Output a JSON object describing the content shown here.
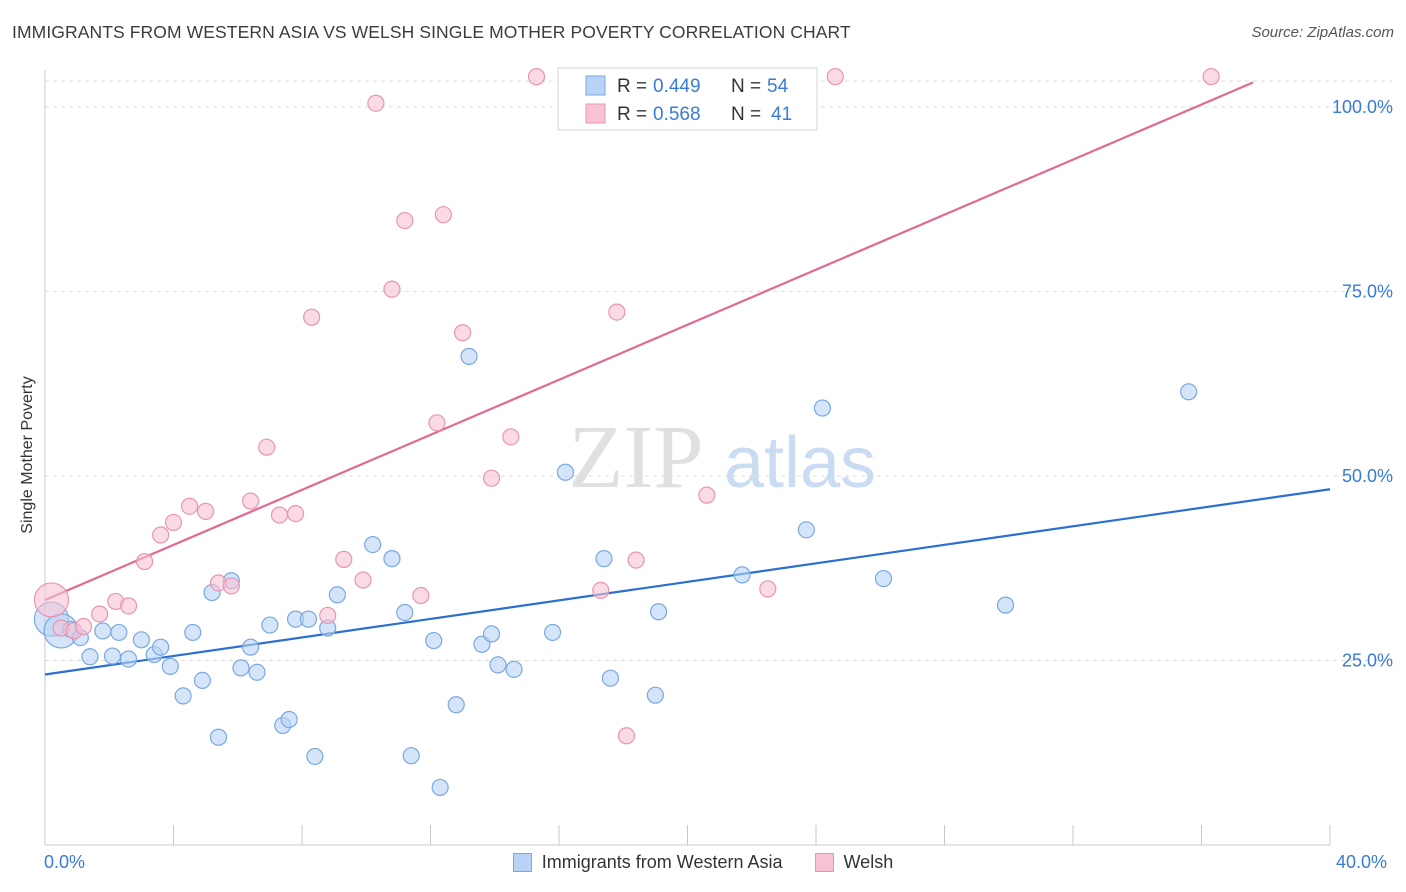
{
  "title": "IMMIGRANTS FROM WESTERN ASIA VS WELSH SINGLE MOTHER POVERTY CORRELATION CHART",
  "source": "Source: ZipAtlas.com",
  "watermark": {
    "zip": "ZIP",
    "atlas": "atlas"
  },
  "legend_stats": [
    {
      "r_label": "R = ",
      "r_value": "0.449",
      "n_label": "N = ",
      "n_value": "54"
    },
    {
      "r_label": "R = ",
      "r_value": "0.568",
      "n_label": "N = ",
      "n_value": "41"
    }
  ],
  "colors": {
    "blue_fill": "#b8d3f5",
    "blue_stroke": "#7aa8e0",
    "blue_line": "#2b6fcf",
    "pink_fill": "#f7c3d3",
    "pink_stroke": "#e995b0",
    "pink_line": "#e06a93",
    "tick_label": "#3a7bd5",
    "grid": "#dcdcdc"
  },
  "chart_data": {
    "type": "scatter",
    "title": "IMMIGRANTS FROM WESTERN ASIA VS WELSH SINGLE MOTHER POVERTY CORRELATION CHART",
    "xlabel": "",
    "ylabel": "Single Mother Poverty",
    "xlim": [
      0,
      40
    ],
    "ylim": [
      0,
      105
    ],
    "x_tick_labels": [
      "0.0%",
      "40.0%"
    ],
    "y_ticks": [
      25,
      50,
      75,
      100
    ],
    "y_tick_labels": [
      "25.0%",
      "50.0%",
      "75.0%",
      "100.0%"
    ],
    "grid": true,
    "legend_position": "top-center",
    "series": [
      {
        "name": "Immigrants from Western Asia",
        "r": 0.449,
        "n": 54,
        "trend": {
          "x": [
            0,
            40
          ],
          "y": [
            23.1,
            48.2
          ]
        },
        "points": [
          {
            "x": 0.2,
            "y": 30.6,
            "big": true
          },
          {
            "x": 0.5,
            "y": 29.0,
            "big": true
          },
          {
            "x": 0.8,
            "y": 29.2
          },
          {
            "x": 1.1,
            "y": 28.1
          },
          {
            "x": 1.4,
            "y": 25.5
          },
          {
            "x": 1.8,
            "y": 29.0
          },
          {
            "x": 2.1,
            "y": 25.6
          },
          {
            "x": 2.3,
            "y": 28.8
          },
          {
            "x": 2.6,
            "y": 25.2
          },
          {
            "x": 3.0,
            "y": 27.8
          },
          {
            "x": 3.4,
            "y": 25.8
          },
          {
            "x": 3.6,
            "y": 26.8
          },
          {
            "x": 3.9,
            "y": 24.2
          },
          {
            "x": 4.3,
            "y": 20.2
          },
          {
            "x": 4.6,
            "y": 28.8
          },
          {
            "x": 4.9,
            "y": 22.3
          },
          {
            "x": 5.2,
            "y": 34.2
          },
          {
            "x": 5.4,
            "y": 14.6
          },
          {
            "x": 5.8,
            "y": 35.8
          },
          {
            "x": 6.1,
            "y": 24.0
          },
          {
            "x": 6.4,
            "y": 26.8
          },
          {
            "x": 6.6,
            "y": 23.4
          },
          {
            "x": 7.0,
            "y": 29.8
          },
          {
            "x": 7.4,
            "y": 16.2
          },
          {
            "x": 7.6,
            "y": 17.0
          },
          {
            "x": 7.8,
            "y": 30.6
          },
          {
            "x": 8.2,
            "y": 30.6
          },
          {
            "x": 8.4,
            "y": 12.0
          },
          {
            "x": 8.8,
            "y": 29.4
          },
          {
            "x": 9.1,
            "y": 33.9
          },
          {
            "x": 10.2,
            "y": 40.7
          },
          {
            "x": 10.8,
            "y": 38.8
          },
          {
            "x": 11.2,
            "y": 31.5
          },
          {
            "x": 11.4,
            "y": 12.1
          },
          {
            "x": 12.1,
            "y": 27.7
          },
          {
            "x": 12.3,
            "y": 7.8
          },
          {
            "x": 12.8,
            "y": 19.0
          },
          {
            "x": 13.2,
            "y": 66.2
          },
          {
            "x": 13.6,
            "y": 27.2
          },
          {
            "x": 13.9,
            "y": 28.6
          },
          {
            "x": 14.1,
            "y": 24.4
          },
          {
            "x": 14.6,
            "y": 23.8
          },
          {
            "x": 15.8,
            "y": 28.8
          },
          {
            "x": 16.2,
            "y": 50.5
          },
          {
            "x": 17.4,
            "y": 38.8
          },
          {
            "x": 17.6,
            "y": 22.6
          },
          {
            "x": 19.0,
            "y": 20.3
          },
          {
            "x": 19.1,
            "y": 31.6
          },
          {
            "x": 21.7,
            "y": 36.6
          },
          {
            "x": 23.7,
            "y": 42.7
          },
          {
            "x": 24.2,
            "y": 59.2
          },
          {
            "x": 26.1,
            "y": 36.1
          },
          {
            "x": 29.9,
            "y": 32.5
          },
          {
            "x": 35.6,
            "y": 61.4
          }
        ]
      },
      {
        "name": "Welsh",
        "r": 0.568,
        "n": 41,
        "trend": {
          "x": [
            0,
            37.6
          ],
          "y": [
            33.2,
            103.3
          ]
        },
        "points": [
          {
            "x": 0.2,
            "y": 33.2,
            "big": true
          },
          {
            "x": 0.5,
            "y": 29.4
          },
          {
            "x": 0.9,
            "y": 29.0
          },
          {
            "x": 1.2,
            "y": 29.6
          },
          {
            "x": 1.7,
            "y": 31.3
          },
          {
            "x": 2.2,
            "y": 33.0
          },
          {
            "x": 2.6,
            "y": 32.4
          },
          {
            "x": 3.1,
            "y": 38.4
          },
          {
            "x": 3.6,
            "y": 42.0
          },
          {
            "x": 4.0,
            "y": 43.7
          },
          {
            "x": 4.5,
            "y": 45.9
          },
          {
            "x": 5.0,
            "y": 45.2
          },
          {
            "x": 5.4,
            "y": 35.5
          },
          {
            "x": 5.8,
            "y": 35.1
          },
          {
            "x": 6.4,
            "y": 46.6
          },
          {
            "x": 6.9,
            "y": 53.9
          },
          {
            "x": 7.3,
            "y": 44.7
          },
          {
            "x": 7.8,
            "y": 44.9
          },
          {
            "x": 8.3,
            "y": 71.5
          },
          {
            "x": 8.8,
            "y": 31.1
          },
          {
            "x": 9.3,
            "y": 38.7
          },
          {
            "x": 9.9,
            "y": 35.9
          },
          {
            "x": 10.3,
            "y": 100.5
          },
          {
            "x": 10.8,
            "y": 75.3
          },
          {
            "x": 11.2,
            "y": 84.6
          },
          {
            "x": 11.7,
            "y": 33.8
          },
          {
            "x": 12.4,
            "y": 85.4
          },
          {
            "x": 12.2,
            "y": 57.2
          },
          {
            "x": 13.0,
            "y": 69.4
          },
          {
            "x": 13.9,
            "y": 49.7
          },
          {
            "x": 14.5,
            "y": 55.3
          },
          {
            "x": 15.3,
            "y": 104.1
          },
          {
            "x": 17.3,
            "y": 34.5
          },
          {
            "x": 17.8,
            "y": 72.2
          },
          {
            "x": 18.1,
            "y": 14.8
          },
          {
            "x": 18.4,
            "y": 38.6
          },
          {
            "x": 20.0,
            "y": 103.9
          },
          {
            "x": 20.6,
            "y": 47.4
          },
          {
            "x": 22.5,
            "y": 34.7
          },
          {
            "x": 24.6,
            "y": 104.1
          },
          {
            "x": 36.3,
            "y": 104.1
          }
        ]
      }
    ]
  }
}
